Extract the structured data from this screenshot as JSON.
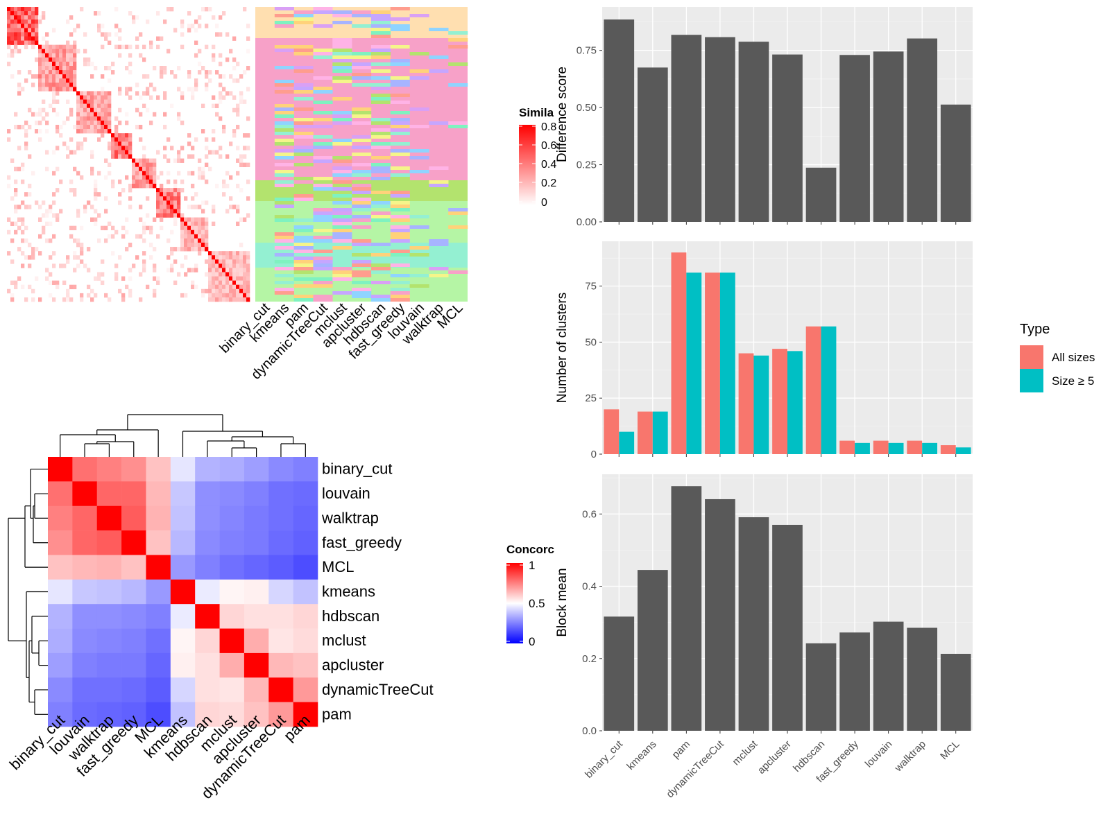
{
  "legends": {
    "similarity": {
      "title": "Simila",
      "ticks": [
        "0.8",
        "0.6",
        "0.4",
        "0.2",
        "0"
      ],
      "colors": [
        "#ffffff",
        "#ff0000"
      ]
    },
    "concordance": {
      "title": "Concorc",
      "ticks": [
        "1",
        "0.5",
        "0"
      ],
      "colors": [
        "#0000ff",
        "#ffffff",
        "#ff0000"
      ]
    },
    "type": {
      "title": "Type",
      "items": [
        {
          "label": "All sizes",
          "color": "#f8766d"
        },
        {
          "label": "Size ≥ 5",
          "color": "#00bfc4"
        }
      ]
    }
  },
  "palette": {
    "panel_bg": "#ebebeb",
    "bar": "#595959",
    "heat_red": "#ff0000",
    "heat_blue": "#0000ff"
  },
  "chart_data": [
    {
      "type": "heatmap",
      "name": "similarity matrix",
      "value_range": [
        0,
        0.8
      ],
      "colorscale": [
        "#ffffff",
        "#ff0000"
      ],
      "row_labels": [],
      "col_labels": []
    },
    {
      "type": "heatmap",
      "name": "cluster membership",
      "categories": [
        "binary_cut",
        "kmeans",
        "pam",
        "dynamicTreeCut",
        "mclust",
        "apcluster",
        "hdbscan",
        "fast_greedy",
        "louvain",
        "walktrap",
        "MCL"
      ]
    },
    {
      "type": "heatmap",
      "name": "concordance",
      "labels": [
        "binary_cut",
        "louvain",
        "walktrap",
        "fast_greedy",
        "MCL",
        "kmeans",
        "hdbscan",
        "mclust",
        "apcluster",
        "dynamicTreeCut",
        "pam"
      ],
      "value_range": [
        0,
        1
      ],
      "values": [
        [
          1.0,
          0.78,
          0.75,
          0.72,
          0.62,
          0.45,
          0.35,
          0.34,
          0.31,
          0.27,
          0.25
        ],
        [
          0.78,
          1.0,
          0.8,
          0.8,
          0.64,
          0.39,
          0.28,
          0.27,
          0.25,
          0.22,
          0.21
        ],
        [
          0.75,
          0.8,
          1.0,
          0.82,
          0.65,
          0.38,
          0.28,
          0.26,
          0.24,
          0.22,
          0.2
        ],
        [
          0.72,
          0.8,
          0.82,
          1.0,
          0.62,
          0.36,
          0.27,
          0.25,
          0.24,
          0.21,
          0.19
        ],
        [
          0.62,
          0.64,
          0.65,
          0.62,
          1.0,
          0.3,
          0.25,
          0.22,
          0.2,
          0.18,
          0.15
        ],
        [
          0.45,
          0.39,
          0.38,
          0.36,
          0.3,
          1.0,
          0.46,
          0.52,
          0.53,
          0.42,
          0.38
        ],
        [
          0.35,
          0.28,
          0.28,
          0.27,
          0.25,
          0.46,
          1.0,
          0.58,
          0.56,
          0.56,
          0.58
        ],
        [
          0.34,
          0.27,
          0.26,
          0.25,
          0.22,
          0.52,
          0.58,
          1.0,
          0.66,
          0.55,
          0.57
        ],
        [
          0.31,
          0.25,
          0.24,
          0.24,
          0.2,
          0.53,
          0.56,
          0.66,
          1.0,
          0.64,
          0.62
        ],
        [
          0.27,
          0.22,
          0.22,
          0.21,
          0.18,
          0.42,
          0.56,
          0.55,
          0.64,
          1.0,
          0.7
        ],
        [
          0.25,
          0.21,
          0.2,
          0.19,
          0.15,
          0.38,
          0.58,
          0.57,
          0.62,
          0.7,
          1.0
        ]
      ]
    },
    {
      "type": "bar",
      "name": "difference score",
      "categories": [
        "binary_cut",
        "kmeans",
        "pam",
        "dynamicTreeCut",
        "mclust",
        "apcluster",
        "hdbscan",
        "fast_greedy",
        "louvain",
        "walktrap",
        "MCL"
      ],
      "values": [
        0.885,
        0.675,
        0.818,
        0.808,
        0.788,
        0.732,
        0.237,
        0.73,
        0.745,
        0.802,
        0.513
      ],
      "xlabel": "",
      "ylabel": "Difference score",
      "ylim": [
        0,
        0.94
      ],
      "yticks": [
        0,
        0.25,
        0.5,
        0.75
      ],
      "ytick_labels": [
        "0.00",
        "0.25",
        "0.50",
        "0.75"
      ],
      "grid": true
    },
    {
      "type": "bar",
      "name": "number of clusters",
      "categories": [
        "binary_cut",
        "kmeans",
        "pam",
        "dynamicTreeCut",
        "mclust",
        "apcluster",
        "hdbscan",
        "fast_greedy",
        "louvain",
        "walktrap",
        "MCL"
      ],
      "series": [
        {
          "name": "All sizes",
          "values": [
            20,
            19,
            90,
            81,
            45,
            47,
            57,
            6,
            6,
            6,
            4
          ]
        },
        {
          "name": "Size ≥ 5",
          "values": [
            10,
            19,
            81,
            81,
            44,
            46,
            57,
            5,
            5,
            5,
            3
          ]
        }
      ],
      "xlabel": "",
      "ylabel": "Number of clusters",
      "ylim": [
        0,
        95
      ],
      "yticks": [
        0,
        25,
        50,
        75
      ],
      "ytick_labels": [
        "0",
        "25",
        "50",
        "75"
      ],
      "legend": "right",
      "grid": true
    },
    {
      "type": "bar",
      "name": "block mean",
      "categories": [
        "binary_cut",
        "kmeans",
        "pam",
        "dynamicTreeCut",
        "mclust",
        "apcluster",
        "hdbscan",
        "fast_greedy",
        "louvain",
        "walktrap",
        "MCL"
      ],
      "values": [
        0.316,
        0.445,
        0.677,
        0.641,
        0.591,
        0.57,
        0.242,
        0.272,
        0.302,
        0.285,
        0.213
      ],
      "xlabel": "",
      "ylabel": "Block mean",
      "ylim": [
        0,
        0.71
      ],
      "yticks": [
        0,
        0.2,
        0.4,
        0.6
      ],
      "ytick_labels": [
        "0.0",
        "0.2",
        "0.4",
        "0.6"
      ],
      "grid": true
    }
  ]
}
